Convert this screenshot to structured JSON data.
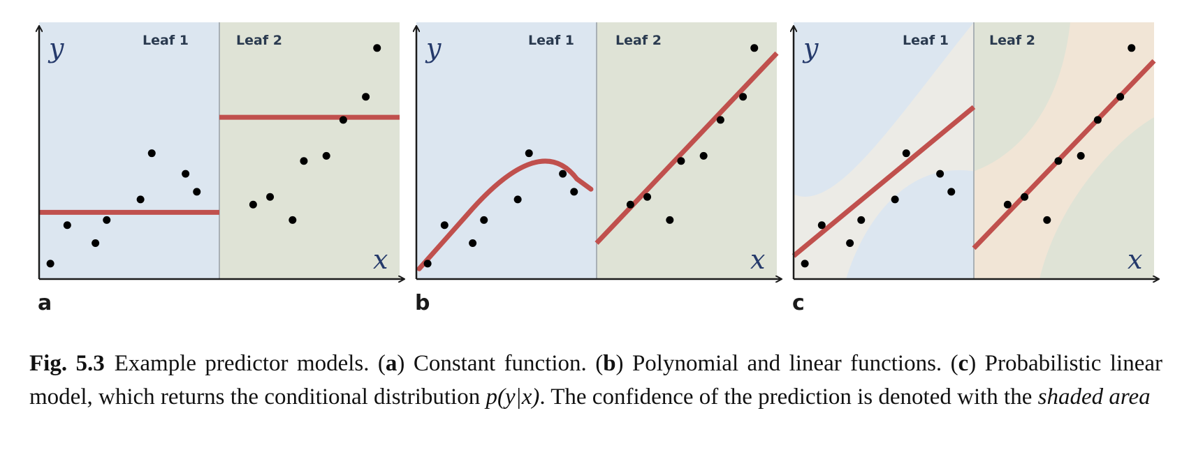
{
  "panels": [
    {
      "letter": "a",
      "leaf1_label": "Leaf 1",
      "leaf2_label": "Leaf 2",
      "y_label": "y",
      "x_label": "x",
      "leaf1_color": "#dce6f0",
      "leaf2_color": "#dfe3d6",
      "model": "constant",
      "leaf1_constant": 2.6,
      "leaf2_constant": 6.3,
      "points": [
        [
          0.2,
          0.6
        ],
        [
          0.5,
          2.1
        ],
        [
          1.2,
          2.3
        ],
        [
          1.0,
          1.4
        ],
        [
          1.8,
          3.1
        ],
        [
          2.0,
          4.9
        ],
        [
          2.6,
          4.1
        ],
        [
          2.8,
          3.4
        ],
        [
          3.8,
          2.9
        ],
        [
          4.1,
          3.2
        ],
        [
          4.5,
          2.3
        ],
        [
          4.7,
          4.6
        ],
        [
          5.1,
          4.8
        ],
        [
          5.4,
          6.2
        ],
        [
          5.8,
          7.1
        ],
        [
          6.0,
          9.0
        ]
      ]
    },
    {
      "letter": "b",
      "leaf1_label": "Leaf 1",
      "leaf2_label": "Leaf 2",
      "y_label": "y",
      "x_label": "x",
      "leaf1_color": "#dce6f0",
      "leaf2_color": "#dfe3d6",
      "model": "polynomial-linear",
      "points": [
        [
          0.2,
          0.6
        ],
        [
          0.5,
          2.1
        ],
        [
          1.2,
          2.3
        ],
        [
          1.0,
          1.4
        ],
        [
          1.8,
          3.1
        ],
        [
          2.0,
          4.9
        ],
        [
          2.6,
          4.1
        ],
        [
          2.8,
          3.4
        ],
        [
          3.8,
          2.9
        ],
        [
          4.1,
          3.2
        ],
        [
          4.5,
          2.3
        ],
        [
          4.7,
          4.6
        ],
        [
          5.1,
          4.8
        ],
        [
          5.4,
          6.2
        ],
        [
          5.8,
          7.1
        ],
        [
          6.0,
          9.0
        ]
      ]
    },
    {
      "letter": "c",
      "leaf1_label": "Leaf 1",
      "leaf2_label": "Leaf 2",
      "y_label": "y",
      "x_label": "x",
      "leaf1_color": "#dce6f0",
      "leaf2_color": "#dfe3d6",
      "band_color": "#ecebe6",
      "band2_color": "#f1e5d6",
      "model": "probabilistic-linear",
      "points": [
        [
          0.2,
          0.6
        ],
        [
          0.5,
          2.1
        ],
        [
          1.2,
          2.3
        ],
        [
          1.0,
          1.4
        ],
        [
          1.8,
          3.1
        ],
        [
          2.0,
          4.9
        ],
        [
          2.6,
          4.1
        ],
        [
          2.8,
          3.4
        ],
        [
          3.8,
          2.9
        ],
        [
          4.1,
          3.2
        ],
        [
          4.5,
          2.3
        ],
        [
          4.7,
          4.6
        ],
        [
          5.1,
          4.8
        ],
        [
          5.4,
          6.2
        ],
        [
          5.8,
          7.1
        ],
        [
          6.0,
          9.0
        ]
      ]
    }
  ],
  "colors": {
    "model_line": "#c0504d",
    "point": "#000000",
    "axis": "#1a1a1a",
    "divider": "#a9b0b5"
  },
  "caption": {
    "fig_num": "Fig. 5.3",
    "s1": "Example predictor models. (",
    "b_a": "a",
    "s2": ") Constant function. (",
    "b_b": "b",
    "s3": ") Polynomial and linear functions. (",
    "b_c": "c",
    "s4": ") Probabilistic linear model, which returns the conditional distribution ",
    "math": "p(y|x)",
    "s5": ". The confidence of the prediction is denoted with the ",
    "italic_end": "shaded area"
  }
}
